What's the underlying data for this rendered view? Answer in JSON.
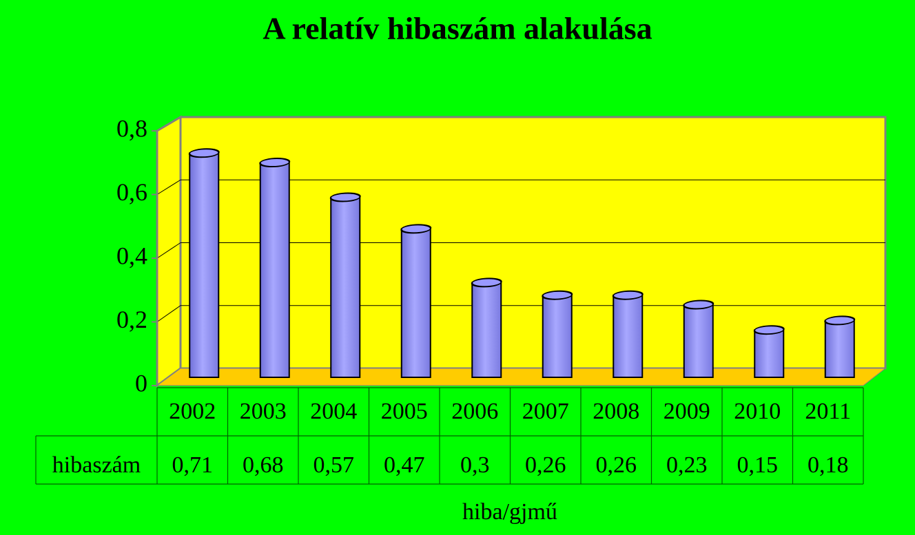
{
  "chart_data": {
    "type": "bar3d",
    "title": "A relatív hibaszám alakulása",
    "x_label": "hiba/gjmű",
    "categories": [
      "2002",
      "2003",
      "2004",
      "2005",
      "2006",
      "2007",
      "2008",
      "2009",
      "2010",
      "2011"
    ],
    "series": [
      {
        "name": "hibaszám",
        "color": "#9999ff",
        "values": [
          0.71,
          0.68,
          0.57,
          0.47,
          0.3,
          0.26,
          0.26,
          0.23,
          0.15,
          0.18
        ],
        "value_labels": [
          "0,71",
          "0,68",
          "0,57",
          "0,47",
          "0,3",
          "0,26",
          "0,26",
          "0,23",
          "0,15",
          "0,18"
        ]
      }
    ],
    "ylim": [
      0,
      0.8
    ],
    "yticks": [
      0,
      {
        "value": 0.2,
        "label": "0,2"
      },
      {
        "value": 0.4,
        "label": "0,4"
      },
      {
        "value": 0.6,
        "label": "0,6"
      },
      {
        "value": 0.8,
        "label": "0,8"
      }
    ],
    "grid": true
  }
}
